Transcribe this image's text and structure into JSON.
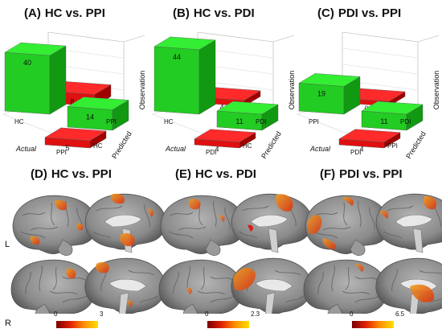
{
  "confusion_panels": [
    {
      "letter": "(A)",
      "title": "HC vs. PPI",
      "actual_categories": [
        "HC",
        "PPI"
      ],
      "predicted_categories": [
        "HC",
        "PPI"
      ],
      "counts": {
        "HC_HC": 40,
        "HC_PPI": 8,
        "PPI_PPI": 14,
        "PPI_HC": 5
      },
      "z_axis_label": "Observation",
      "actual_label": "Actual",
      "predicted_label": "Predicted"
    },
    {
      "letter": "(B)",
      "title": "HC vs. PDI",
      "actual_categories": [
        "HC",
        "PDI"
      ],
      "predicted_categories": [
        "HC",
        "PDI"
      ],
      "counts": {
        "HC_HC": 44,
        "HC_PDI": 4,
        "PDI_PDI": 11,
        "PDI_HC": 4
      },
      "z_axis_label": "Observation",
      "actual_label": "Actual",
      "predicted_label": "Predicted"
    },
    {
      "letter": "(C)",
      "title": "PDI vs. PPI",
      "actual_categories": [
        "PPI",
        "PDI"
      ],
      "predicted_categories": [
        "PPI",
        "PDI"
      ],
      "counts": {
        "PPI_PPI": 19,
        "PPI_PDI": 0,
        "PDI_PDI": 11,
        "PDI_PPI": 4
      },
      "z_axis_label": "Observation",
      "actual_label": "Actual",
      "predicted_label": "Predicted"
    }
  ],
  "brain_panels": [
    {
      "letter": "(D)",
      "title": "HC vs. PPI",
      "colorbar_min": "0",
      "colorbar_max": "3"
    },
    {
      "letter": "(E)",
      "title": "HC vs. PDI",
      "colorbar_min": "0",
      "colorbar_max": "2.3"
    },
    {
      "letter": "(F)",
      "title": "PDI vs. PPI",
      "colorbar_min": "0",
      "colorbar_max": "6.5"
    }
  ],
  "hemisphere_labels": {
    "left": "L",
    "right": "R"
  },
  "colors": {
    "correct_bar_top": "#33ee33",
    "correct_bar_front": "#22cc22",
    "correct_bar_side": "#119911",
    "incorrect_bar_top": "#ff2a2a",
    "incorrect_bar_front": "#e01010",
    "incorrect_bar_side": "#a00000",
    "brain_gray": "#8c8c8c",
    "activation": "#e86a1a"
  }
}
